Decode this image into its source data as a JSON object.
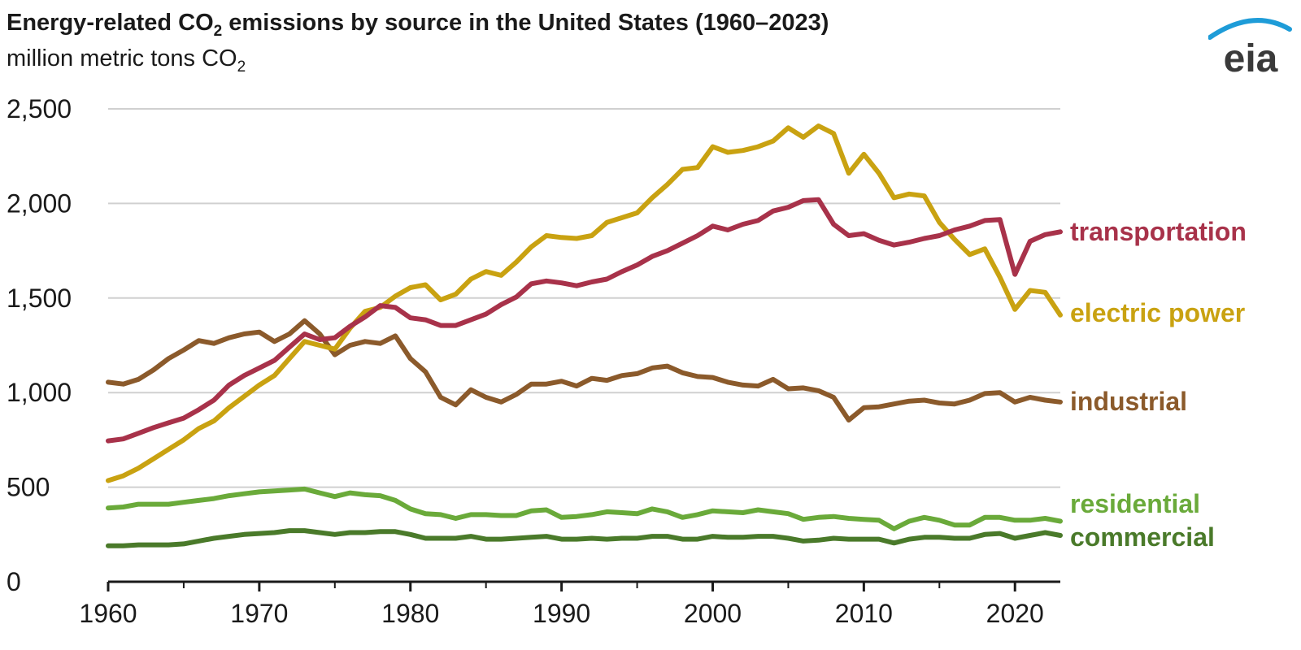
{
  "header": {
    "title_part1": "Energy-related CO",
    "title_sub": "2",
    "title_part2": " emissions by source in the United States (1960–2023)",
    "subtitle_part1": "million metric tons CO",
    "subtitle_sub": "2"
  },
  "logo": {
    "text": "eia",
    "arc_color": "#1e9cd8",
    "icon": "eia-logo-icon"
  },
  "chart_data": {
    "type": "line",
    "title": "Energy-related CO2 emissions by source in the United States (1960–2023)",
    "ylabel": "million metric tons CO2",
    "xlabel": "",
    "xlim": [
      1960,
      2023
    ],
    "ylim": [
      0,
      2500
    ],
    "x_ticks": [
      1960,
      1970,
      1980,
      1990,
      2000,
      2010,
      2020
    ],
    "x_tick_labels": [
      "1960",
      "1970",
      "1980",
      "1990",
      "2000",
      "2010",
      "2020"
    ],
    "y_ticks": [
      0,
      500,
      1000,
      1500,
      2000,
      2500
    ],
    "y_tick_labels": [
      "0",
      "500",
      "1,000",
      "1,500",
      "2,000",
      "2,500"
    ],
    "grid": "horizontal",
    "legend": "direct labels at right end of lines",
    "x": [
      1960,
      1961,
      1962,
      1963,
      1964,
      1965,
      1966,
      1967,
      1968,
      1969,
      1970,
      1971,
      1972,
      1973,
      1974,
      1975,
      1976,
      1977,
      1978,
      1979,
      1980,
      1981,
      1982,
      1983,
      1984,
      1985,
      1986,
      1987,
      1988,
      1989,
      1990,
      1991,
      1992,
      1993,
      1994,
      1995,
      1996,
      1997,
      1998,
      1999,
      2000,
      2001,
      2002,
      2003,
      2004,
      2005,
      2006,
      2007,
      2008,
      2009,
      2010,
      2011,
      2012,
      2013,
      2014,
      2015,
      2016,
      2017,
      2018,
      2019,
      2020,
      2021,
      2022,
      2023
    ],
    "series": [
      {
        "name": "transportation",
        "color": "#a8324a",
        "values": [
          745,
          755,
          785,
          815,
          840,
          865,
          910,
          960,
          1040,
          1090,
          1130,
          1170,
          1240,
          1310,
          1280,
          1290,
          1350,
          1400,
          1460,
          1450,
          1395,
          1385,
          1355,
          1355,
          1385,
          1415,
          1465,
          1505,
          1575,
          1590,
          1580,
          1565,
          1585,
          1600,
          1640,
          1675,
          1720,
          1750,
          1790,
          1830,
          1880,
          1860,
          1890,
          1910,
          1960,
          1980,
          2015,
          2020,
          1890,
          1830,
          1840,
          1805,
          1780,
          1795,
          1815,
          1830,
          1860,
          1880,
          1910,
          1915,
          1625,
          1800,
          1835,
          1850
        ]
      },
      {
        "name": "electric power",
        "color": "#c9a211",
        "values": [
          535,
          560,
          600,
          650,
          700,
          750,
          810,
          850,
          920,
          980,
          1040,
          1090,
          1180,
          1270,
          1250,
          1230,
          1340,
          1430,
          1450,
          1510,
          1555,
          1570,
          1490,
          1520,
          1600,
          1640,
          1620,
          1690,
          1770,
          1830,
          1820,
          1815,
          1830,
          1900,
          1925,
          1950,
          2030,
          2100,
          2180,
          2190,
          2300,
          2270,
          2280,
          2300,
          2330,
          2400,
          2350,
          2410,
          2370,
          2160,
          2260,
          2160,
          2030,
          2050,
          2040,
          1900,
          1810,
          1730,
          1760,
          1610,
          1440,
          1540,
          1530,
          1410
        ]
      },
      {
        "name": "industrial",
        "color": "#8b5a2b",
        "values": [
          1055,
          1045,
          1070,
          1120,
          1180,
          1225,
          1275,
          1260,
          1290,
          1310,
          1320,
          1270,
          1310,
          1380,
          1310,
          1200,
          1250,
          1270,
          1260,
          1300,
          1180,
          1110,
          975,
          935,
          1015,
          975,
          950,
          990,
          1045,
          1045,
          1060,
          1035,
          1075,
          1065,
          1090,
          1100,
          1130,
          1140,
          1105,
          1085,
          1080,
          1055,
          1040,
          1035,
          1070,
          1020,
          1025,
          1010,
          975,
          855,
          920,
          925,
          940,
          955,
          960,
          945,
          940,
          960,
          995,
          1000,
          950,
          975,
          960,
          950
        ]
      },
      {
        "name": "residential",
        "color": "#6aaa3a",
        "values": [
          390,
          395,
          410,
          410,
          410,
          420,
          430,
          440,
          455,
          465,
          475,
          480,
          485,
          490,
          470,
          450,
          470,
          460,
          455,
          430,
          385,
          360,
          355,
          335,
          355,
          355,
          350,
          350,
          375,
          380,
          340,
          345,
          355,
          370,
          365,
          360,
          385,
          370,
          340,
          355,
          375,
          370,
          365,
          380,
          370,
          360,
          330,
          340,
          345,
          335,
          330,
          325,
          280,
          320,
          340,
          325,
          300,
          300,
          340,
          340,
          325,
          325,
          335,
          320
        ]
      },
      {
        "name": "commercial",
        "color": "#4a7a2a",
        "values": [
          190,
          190,
          195,
          195,
          195,
          200,
          215,
          230,
          240,
          250,
          255,
          260,
          270,
          270,
          260,
          250,
          260,
          260,
          265,
          265,
          250,
          230,
          230,
          230,
          240,
          225,
          225,
          230,
          235,
          240,
          225,
          225,
          230,
          225,
          230,
          230,
          240,
          240,
          225,
          225,
          240,
          235,
          235,
          240,
          240,
          230,
          215,
          220,
          230,
          225,
          225,
          225,
          205,
          225,
          235,
          235,
          230,
          230,
          250,
          255,
          230,
          245,
          260,
          245
        ]
      }
    ]
  }
}
